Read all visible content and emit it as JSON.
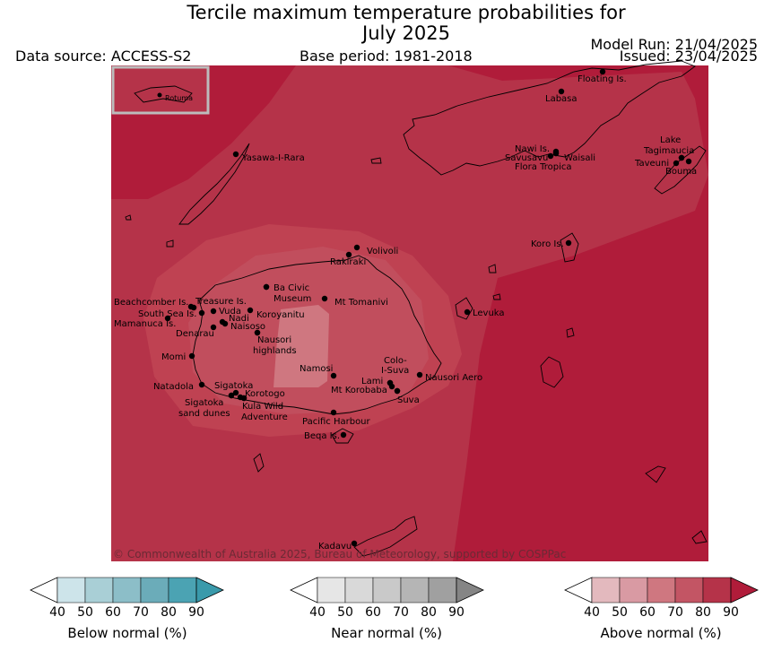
{
  "header": {
    "title_line1": "Tercile maximum temperature probabilities for",
    "title_line2": "July 2025",
    "data_source": "Data source: ACCESS-S2",
    "base_period": "Base period: 1981-2018",
    "model_run": "Model Run: 21/04/2025",
    "issued": "Issued: 23/04/2025"
  },
  "map": {
    "copyright": "© Commonwealth of Australia 2025, Bureau of Meteorology, supported by COSPPac",
    "inset_label": "Rotuma",
    "places": [
      {
        "label": "Floating Is."
      },
      {
        "label": "Labasa"
      },
      {
        "label": "Yasawa-I-Rara"
      },
      {
        "label": "Nawi Is."
      },
      {
        "label": "Savusavu"
      },
      {
        "label": "Waisali"
      },
      {
        "label": "Flora Tropica"
      },
      {
        "label": "Lake"
      },
      {
        "label": "Tagimaucia"
      },
      {
        "label": "Taveuni"
      },
      {
        "label": "Bouma"
      },
      {
        "label": "Volivoli"
      },
      {
        "label": "Rakiraki"
      },
      {
        "label": "Koro Is."
      },
      {
        "label": "Ba Civic"
      },
      {
        "label": "Museum"
      },
      {
        "label": "Mt Tomanivi"
      },
      {
        "label": "Beachcomber Is."
      },
      {
        "label": "Treasure Is."
      },
      {
        "label": "South Sea Is."
      },
      {
        "label": "Vuda"
      },
      {
        "label": "Koroyanitu"
      },
      {
        "label": "Nadi"
      },
      {
        "label": "Mamanuca Is."
      },
      {
        "label": "Naisoso"
      },
      {
        "label": "Denarau"
      },
      {
        "label": "Nausori"
      },
      {
        "label": "highlands"
      },
      {
        "label": "Levuka"
      },
      {
        "label": "Momi"
      },
      {
        "label": "Colo-"
      },
      {
        "label": "I-Suva"
      },
      {
        "label": "Namosi"
      },
      {
        "label": "Nausori Aero"
      },
      {
        "label": "Lami"
      },
      {
        "label": "Natadola"
      },
      {
        "label": "Sigatoka"
      },
      {
        "label": "Mt Korobaba"
      },
      {
        "label": "Korotogo"
      },
      {
        "label": "Suva"
      },
      {
        "label": "Sigatoka"
      },
      {
        "label": "sand dunes"
      },
      {
        "label": "Kula Wild"
      },
      {
        "label": "Adventure"
      },
      {
        "label": "Pacific Harbour"
      },
      {
        "label": "Beqa Is."
      },
      {
        "label": "Kadavu"
      }
    ]
  },
  "colorbars": [
    {
      "label": "Below normal (%)",
      "ticks": [
        "40",
        "50",
        "60",
        "70",
        "80",
        "90"
      ],
      "colors": [
        "#ffffff",
        "#cde4ea",
        "#a9cfd6",
        "#8cbec8",
        "#6bacb9",
        "#4ba3b3",
        "#3a9aab"
      ]
    },
    {
      "label": "Near normal (%)",
      "ticks": [
        "40",
        "50",
        "60",
        "70",
        "80",
        "90"
      ],
      "colors": [
        "#ffffff",
        "#e6e6e6",
        "#d9d9d9",
        "#c9c9c9",
        "#b5b5b5",
        "#a0a0a0",
        "#858585"
      ]
    },
    {
      "label": "Above normal (%)",
      "ticks": [
        "40",
        "50",
        "60",
        "70",
        "80",
        "90"
      ],
      "colors": [
        "#ffffff",
        "#e3b9be",
        "#d99aa3",
        "#cf7780",
        "#c35564",
        "#b53349",
        "#b01c3a"
      ]
    }
  ]
}
